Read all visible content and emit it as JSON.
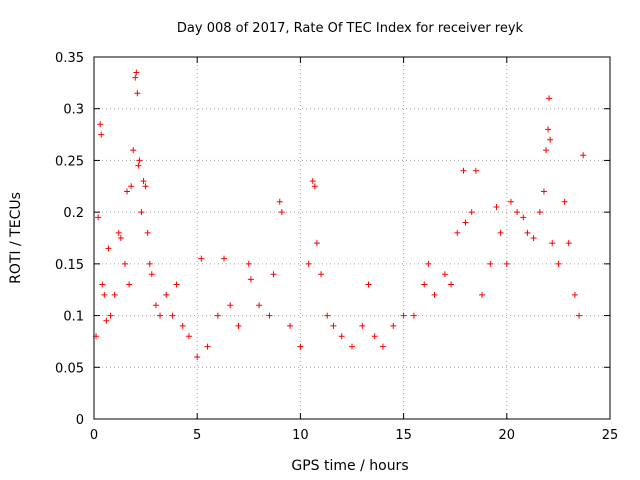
{
  "chart_data": {
    "type": "scatter",
    "title": "Day 008 of 2017, Rate Of TEC Index for receiver reyk",
    "xlabel": "GPS time / hours",
    "ylabel": "ROTI / TECUs",
    "xlim": [
      0,
      25
    ],
    "ylim": [
      0,
      0.35
    ],
    "xticks": [
      0,
      5,
      10,
      15,
      20,
      25
    ],
    "yticks": [
      0,
      0.05,
      0.1,
      0.15,
      0.2,
      0.25,
      0.3,
      0.35
    ],
    "xtick_labels": [
      "0",
      "5",
      "10",
      "15",
      "20",
      "25"
    ],
    "ytick_labels": [
      "0",
      "0.05",
      "0.1",
      "0.15",
      "0.2",
      "0.25",
      "0.3",
      "0.35"
    ],
    "grid": true,
    "marker": "+",
    "color": "#ff0000",
    "series": [
      {
        "points": [
          [
            0.1,
            0.08
          ],
          [
            0.2,
            0.195
          ],
          [
            0.3,
            0.285
          ],
          [
            0.35,
            0.275
          ],
          [
            0.4,
            0.13
          ],
          [
            0.5,
            0.12
          ],
          [
            0.6,
            0.095
          ],
          [
            0.7,
            0.165
          ],
          [
            0.8,
            0.1
          ],
          [
            1.0,
            0.12
          ],
          [
            1.2,
            0.18
          ],
          [
            1.3,
            0.175
          ],
          [
            1.5,
            0.15
          ],
          [
            1.6,
            0.22
          ],
          [
            1.7,
            0.13
          ],
          [
            1.8,
            0.225
          ],
          [
            1.9,
            0.26
          ],
          [
            2.0,
            0.33
          ],
          [
            2.05,
            0.335
          ],
          [
            2.1,
            0.315
          ],
          [
            2.15,
            0.245
          ],
          [
            2.2,
            0.25
          ],
          [
            2.3,
            0.2
          ],
          [
            2.4,
            0.23
          ],
          [
            2.5,
            0.225
          ],
          [
            2.6,
            0.18
          ],
          [
            2.7,
            0.15
          ],
          [
            2.8,
            0.14
          ],
          [
            3.0,
            0.11
          ],
          [
            3.2,
            0.1
          ],
          [
            3.5,
            0.12
          ],
          [
            3.8,
            0.1
          ],
          [
            4.0,
            0.13
          ],
          [
            4.3,
            0.09
          ],
          [
            4.6,
            0.08
          ],
          [
            5.0,
            0.06
          ],
          [
            5.2,
            0.155
          ],
          [
            5.5,
            0.07
          ],
          [
            6.0,
            0.1
          ],
          [
            6.3,
            0.155
          ],
          [
            6.6,
            0.11
          ],
          [
            7.0,
            0.09
          ],
          [
            7.5,
            0.15
          ],
          [
            7.6,
            0.135
          ],
          [
            8.0,
            0.11
          ],
          [
            8.5,
            0.1
          ],
          [
            8.7,
            0.14
          ],
          [
            9.0,
            0.21
          ],
          [
            9.1,
            0.2
          ],
          [
            9.5,
            0.09
          ],
          [
            10.0,
            0.07
          ],
          [
            10.4,
            0.15
          ],
          [
            10.6,
            0.23
          ],
          [
            10.7,
            0.225
          ],
          [
            10.8,
            0.17
          ],
          [
            11.0,
            0.14
          ],
          [
            11.3,
            0.1
          ],
          [
            11.6,
            0.09
          ],
          [
            12.0,
            0.08
          ],
          [
            12.5,
            0.07
          ],
          [
            13.0,
            0.09
          ],
          [
            13.3,
            0.13
          ],
          [
            13.6,
            0.08
          ],
          [
            14.0,
            0.07
          ],
          [
            14.5,
            0.09
          ],
          [
            15.0,
            0.1
          ],
          [
            15.5,
            0.1
          ],
          [
            16.0,
            0.13
          ],
          [
            16.2,
            0.15
          ],
          [
            16.5,
            0.12
          ],
          [
            17.0,
            0.14
          ],
          [
            17.3,
            0.13
          ],
          [
            17.6,
            0.18
          ],
          [
            17.9,
            0.24
          ],
          [
            18.0,
            0.19
          ],
          [
            18.3,
            0.2
          ],
          [
            18.5,
            0.24
          ],
          [
            18.8,
            0.12
          ],
          [
            19.2,
            0.15
          ],
          [
            19.5,
            0.205
          ],
          [
            19.7,
            0.18
          ],
          [
            20.0,
            0.15
          ],
          [
            20.2,
            0.21
          ],
          [
            20.5,
            0.2
          ],
          [
            20.8,
            0.195
          ],
          [
            21.0,
            0.18
          ],
          [
            21.3,
            0.175
          ],
          [
            21.6,
            0.2
          ],
          [
            21.8,
            0.22
          ],
          [
            21.9,
            0.26
          ],
          [
            22.0,
            0.28
          ],
          [
            22.05,
            0.31
          ],
          [
            22.1,
            0.27
          ],
          [
            22.2,
            0.17
          ],
          [
            22.5,
            0.15
          ],
          [
            22.8,
            0.21
          ],
          [
            23.0,
            0.17
          ],
          [
            23.3,
            0.12
          ],
          [
            23.5,
            0.1
          ],
          [
            23.7,
            0.255
          ]
        ]
      }
    ]
  }
}
